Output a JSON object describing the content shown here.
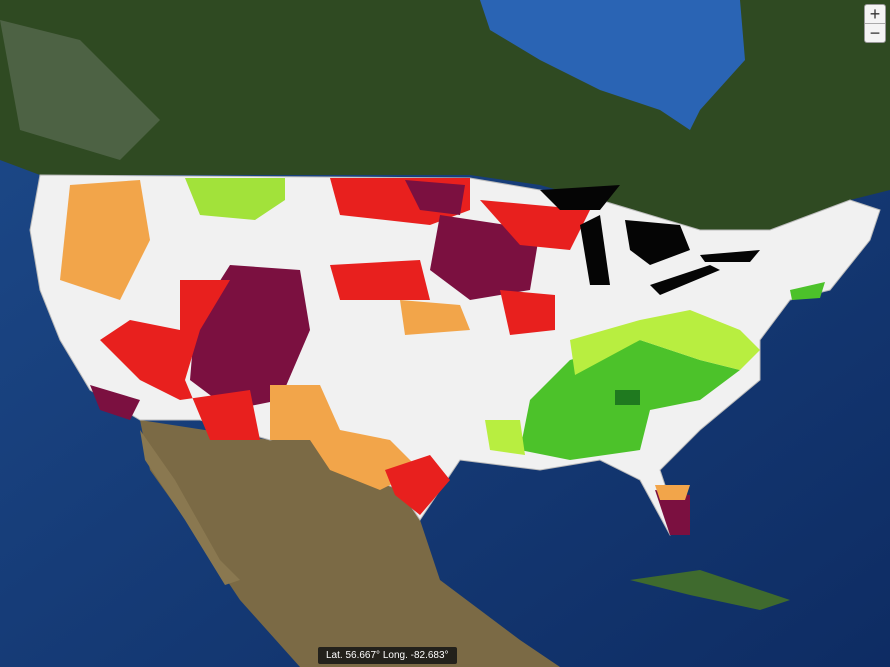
{
  "zoom_controls": {
    "zoom_in": "+",
    "zoom_out": "−"
  },
  "coordinates": "Lat. 56.667°  Long. -82.683°"
}
